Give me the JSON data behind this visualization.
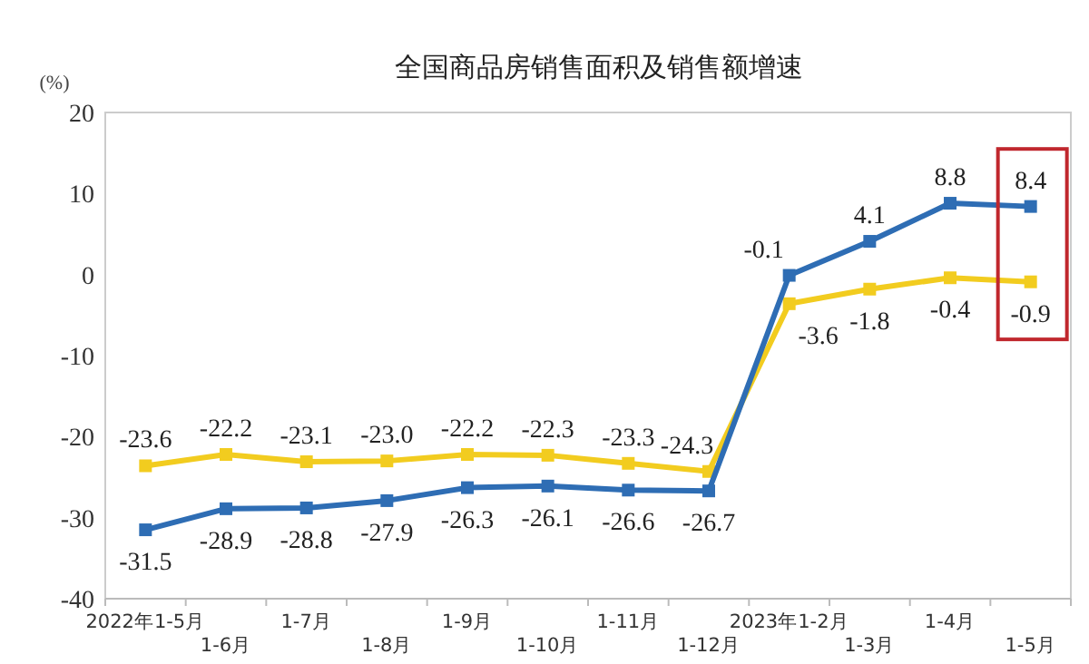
{
  "chart_data": {
    "type": "line",
    "title": "全国商品房销售面积及销售额增速",
    "ylabel": "(%)",
    "categories": [
      "2022年1-5月",
      "1-6月",
      "1-7月",
      "1-8月",
      "1-9月",
      "1-10月",
      "1-11月",
      "1-12月",
      "2023年1-2月",
      "1-3月",
      "1-4月",
      "1-5月"
    ],
    "series": [
      {
        "color": "#f2cc1f",
        "values": [
          -23.6,
          -22.2,
          -23.1,
          -23.0,
          -22.2,
          -22.3,
          -23.3,
          -24.3,
          -3.6,
          -1.8,
          -0.4,
          -0.9
        ],
        "value_labels": [
          "-23.6",
          "-22.2",
          "-23.1",
          "-23.0",
          "-22.2",
          "-22.3",
          "-23.3",
          "-24.3",
          "-3.6",
          "-1.8",
          "-0.4",
          "-0.9"
        ]
      },
      {
        "color": "#2e6db4",
        "values": [
          -31.5,
          -28.9,
          -28.8,
          -27.9,
          -26.3,
          -26.1,
          -26.6,
          -26.7,
          -0.1,
          4.1,
          8.8,
          8.4
        ],
        "value_labels": [
          "-31.5",
          "-28.9",
          "-28.8",
          "-27.9",
          "-26.3",
          "-26.1",
          "-26.6",
          "-26.7",
          "-0.1",
          "4.1",
          "8.8",
          "8.4"
        ]
      }
    ],
    "ylim": [
      -40,
      20
    ],
    "yticks": [
      -40,
      -30,
      -20,
      -10,
      0,
      10,
      20
    ],
    "grid": false,
    "marker": "square"
  }
}
